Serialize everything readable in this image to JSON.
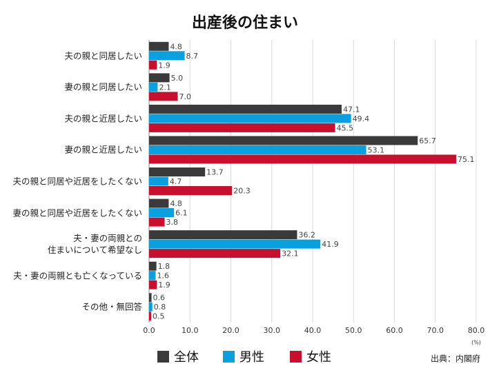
{
  "chart_data": {
    "type": "hbar",
    "title": "出産後の住まい",
    "categories": [
      "夫の親と同居したい",
      "妻の親と同居したい",
      "夫の親と近居したい",
      "妻の親と近居したい",
      "夫の親と同居や近居をしたくない",
      "妻の親と同居や近居をしたくない",
      "夫・妻の両親との\n住まいについて希望なし",
      "夫・妻の両親とも亡くなっている",
      "その他・無回答"
    ],
    "series": [
      {
        "name": "全体",
        "color": "#3a3a3a",
        "values": [
          4.8,
          5.0,
          47.1,
          65.7,
          13.7,
          4.8,
          36.2,
          1.8,
          0.6
        ],
        "value_labels": [
          "4.8",
          "5.0",
          "47.1",
          "65.7",
          "13.7",
          "4.8",
          "36.2",
          "1.8",
          "0.6"
        ]
      },
      {
        "name": "男性",
        "color": "#0aa0e0",
        "values": [
          8.7,
          2.1,
          49.4,
          53.1,
          4.7,
          6.1,
          41.9,
          1.6,
          0.8
        ],
        "value_labels": [
          "8.7",
          "2.1",
          "49.4",
          "53.1",
          "4.7",
          "6.1",
          "41.9",
          "1.6",
          "0.8"
        ]
      },
      {
        "name": "女性",
        "color": "#c8102e",
        "values": [
          1.9,
          7.0,
          45.5,
          75.1,
          20.3,
          3.8,
          32.1,
          1.9,
          0.5
        ],
        "value_labels": [
          "1.9",
          "7.0",
          "45.5",
          "75.1",
          "20.3",
          "3.8",
          "32.1",
          "1.9",
          "0.5"
        ]
      }
    ],
    "xlim": [
      0,
      80
    ],
    "xticks": [
      {
        "value": 0,
        "label": "0.0"
      },
      {
        "value": 10,
        "label": "10.0"
      },
      {
        "value": 20,
        "label": "20.0"
      },
      {
        "value": 30,
        "label": "30.0"
      },
      {
        "value": 40,
        "label": "40.0"
      },
      {
        "value": 50,
        "label": "50.0"
      },
      {
        "value": 60,
        "label": "60.0"
      },
      {
        "value": 70,
        "label": "70.0"
      },
      {
        "value": 80,
        "label": "80.0"
      }
    ],
    "x_unit": "(%)",
    "grid": true,
    "source": "出典：内閣府"
  }
}
